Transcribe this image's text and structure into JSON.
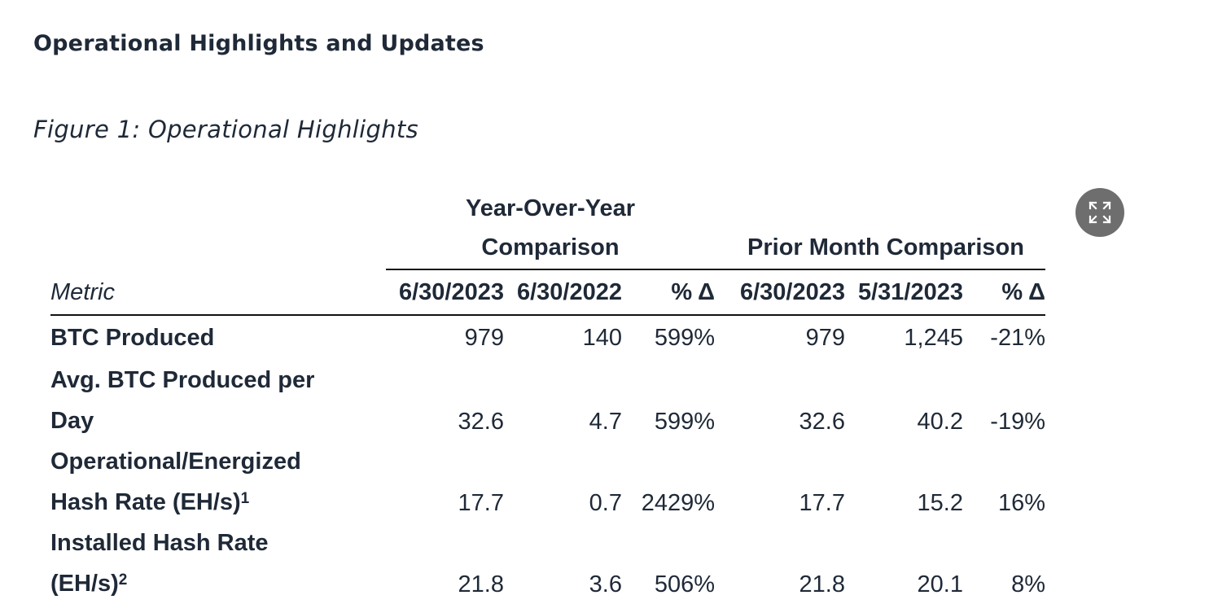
{
  "heading": "Operational Highlights and Updates",
  "figure_caption": "Figure 1: Operational Highlights",
  "expand_icon": "expand-arrows-icon",
  "table": {
    "groups": {
      "yoy": "Year-Over-Year Comparison",
      "mom": "Prior Month Comparison"
    },
    "headers": {
      "metric": "Metric",
      "yoy_current": "6/30/2023",
      "yoy_prior": "6/30/2022",
      "yoy_pct": "% Δ",
      "mom_current": "6/30/2023",
      "mom_prior": "5/31/2023",
      "mom_pct": "% Δ"
    },
    "rows": [
      {
        "metric": "BTC Produced",
        "yoy_current": "979",
        "yoy_prior": "140",
        "yoy_pct": "599%",
        "mom_current": "979",
        "mom_prior": "1,245",
        "mom_pct": "-21%"
      },
      {
        "metric_line1": "Avg. BTC Produced per",
        "metric_line2": "Day",
        "yoy_current": "32.6",
        "yoy_prior": "4.7",
        "yoy_pct": "599%",
        "mom_current": "32.6",
        "mom_prior": "40.2",
        "mom_pct": "-19%"
      },
      {
        "metric_line1": "Operational/Energized",
        "metric_line2": "Hash Rate (EH/s)",
        "footnote": "1",
        "yoy_current": "17.7",
        "yoy_prior": "0.7",
        "yoy_pct": "2429%",
        "mom_current": "17.7",
        "mom_prior": "15.2",
        "mom_pct": "16%"
      },
      {
        "metric_line1": "Installed Hash Rate",
        "metric_line2": "(EH/s)",
        "footnote": "2",
        "yoy_current": "21.8",
        "yoy_prior": "3.6",
        "yoy_pct": "506%",
        "mom_current": "21.8",
        "mom_prior": "20.1",
        "mom_pct": "8%"
      }
    ]
  }
}
